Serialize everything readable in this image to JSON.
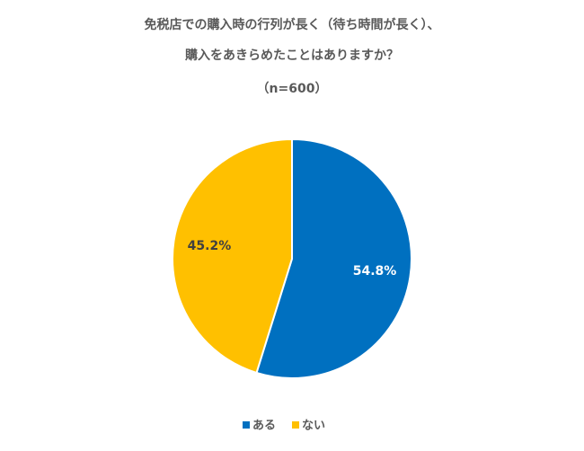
{
  "chart_data": {
    "type": "pie",
    "title": [
      "免税店での購入時の行列が長く（待ち時間が長く）、",
      "購入をあきらめたことはありますか？"
    ],
    "subtitle": "（n=600）",
    "categories": [
      "ある",
      "ない"
    ],
    "values": [
      54.8,
      45.2
    ],
    "value_labels": [
      "54.8%",
      "45.2%"
    ],
    "colors": [
      "#0070c0",
      "#ffc000"
    ],
    "legend": "bottom"
  }
}
